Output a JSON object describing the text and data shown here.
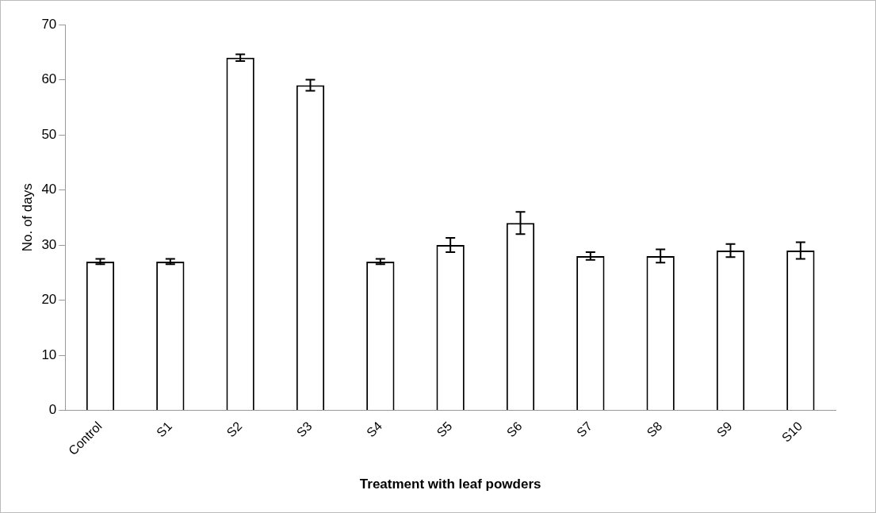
{
  "chart_data": {
    "type": "bar",
    "xlabel": "Treatment with leaf powders",
    "ylabel": "No. of days",
    "categories": [
      "Control",
      "S1",
      "S2",
      "S3",
      "S4",
      "S5",
      "S6",
      "S7",
      "S8",
      "S9",
      "S10"
    ],
    "values": [
      27,
      27,
      64,
      59,
      27,
      30,
      34,
      28,
      28,
      29,
      29
    ],
    "errors": [
      0.5,
      0.5,
      0.6,
      1,
      0.5,
      1.3,
      2,
      0.7,
      1.2,
      1.2,
      1.5
    ],
    "color": "#ffffff",
    "ylim": [
      0,
      70
    ],
    "yticks": [
      0,
      10,
      20,
      30,
      40,
      50,
      60,
      70
    ],
    "grid": false,
    "legend": false
  }
}
